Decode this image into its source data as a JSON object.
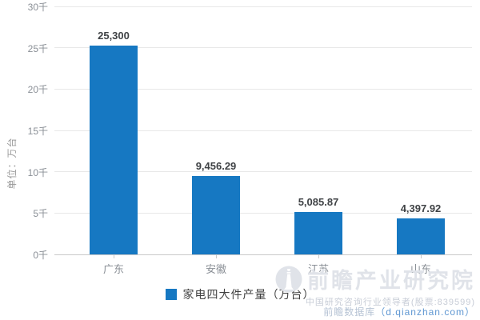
{
  "chart_data": {
    "type": "bar",
    "title": "",
    "categories": [
      "广东",
      "安徽",
      "江苏",
      "山东"
    ],
    "values": [
      25300,
      9456.29,
      5085.87,
      4397.92
    ],
    "value_labels": [
      "25,300",
      "9,456.29",
      "5,085.87",
      "4,397.92"
    ],
    "xlabel": "",
    "ylabel": "单位：万台",
    "ylim": [
      0,
      30000
    ],
    "ytick_step": 5000,
    "ytick_labels": [
      "0千",
      "5千",
      "10千",
      "15千",
      "20千",
      "25千",
      "30千"
    ],
    "grid": "horizontal",
    "bar_color": "#1678c2",
    "legend": {
      "position": "bottom",
      "label": "家电四大件产量（万台）"
    }
  },
  "colors": {
    "bar": "#1678c2",
    "gridline": "#e8e8e8",
    "axis_line": "#c9c9c9",
    "tick_text": "#8a8f96",
    "value_text": "#3f4245"
  },
  "watermark": {
    "brand": "前瞻产业研究院",
    "tagline": "中国研究咨询行业领导者(股票:839599)",
    "db_label": "前瞻数据库",
    "db_domain": "（d.qianzhan.com）"
  }
}
